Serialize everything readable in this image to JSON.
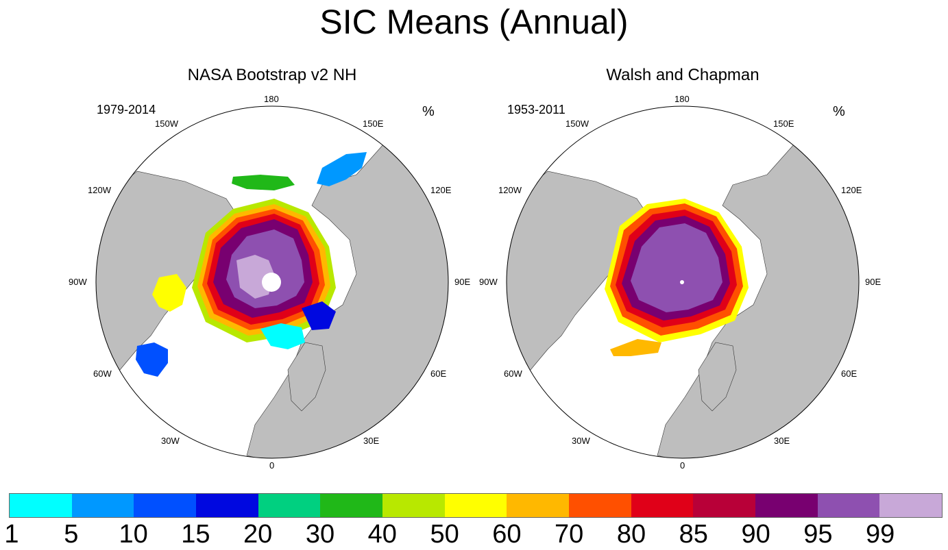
{
  "title": "SIC Means (Annual)",
  "panels": [
    {
      "title": "NASA Bootstrap v2 NH",
      "period": "1979-2014",
      "unit": "%",
      "lon_labels": {
        "l180": "180",
        "l150W": "150W",
        "l150E": "150E",
        "l120W": "120W",
        "l120E": "120E",
        "l90W": "90W",
        "l90E": "90E",
        "l60W": "60W",
        "l60E": "60E",
        "l30W": "30W",
        "l30E": "30E",
        "l0": "0"
      }
    },
    {
      "title": "Walsh and Chapman",
      "period": "1953-2011",
      "unit": "%",
      "lon_labels": {
        "l180": "180",
        "l150W": "150W",
        "l150E": "150E",
        "l120W": "120W",
        "l120E": "120E",
        "l90W": "90W",
        "l90E": "90E",
        "l60W": "60W",
        "l60E": "60E",
        "l30W": "30W",
        "l30E": "30E",
        "l0": "0"
      }
    }
  ],
  "colorbar": {
    "colors": [
      "#00ffff",
      "#0098ff",
      "#0050ff",
      "#0008e0",
      "#00d080",
      "#20b818",
      "#b8e800",
      "#ffff00",
      "#ffb800",
      "#ff5000",
      "#e00018",
      "#b80038",
      "#780070",
      "#8e50b0",
      "#c8a8d8"
    ],
    "labels": [
      "1",
      "5",
      "10",
      "15",
      "20",
      "30",
      "40",
      "50",
      "60",
      "70",
      "80",
      "85",
      "90",
      "95",
      "99"
    ]
  },
  "colors": {
    "land": "#bebebe",
    "ocean": "#ffffff",
    "pole_hole": "#ffffff",
    "coast": "#333333"
  }
}
